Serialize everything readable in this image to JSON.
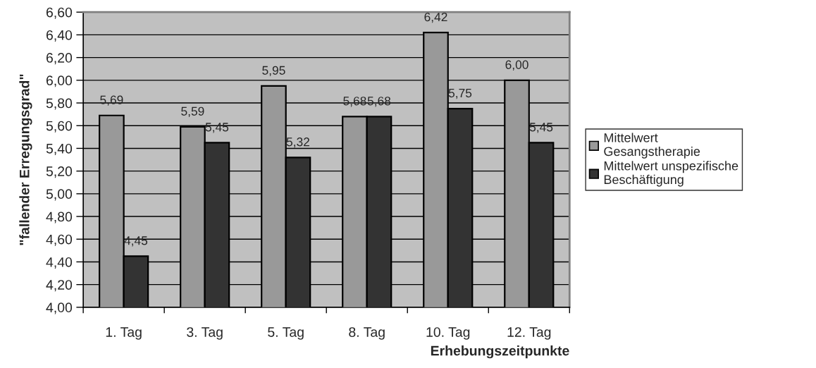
{
  "chart_data": {
    "type": "bar",
    "xlabel": "Erhebungszeitpunkte",
    "ylabel": "\"fallender Erregungsgrad\"",
    "categories": [
      "1. Tag",
      "3. Tag",
      "5. Tag",
      "8. Tag",
      "10. Tag",
      "12. Tag"
    ],
    "series": [
      {
        "name": "Mittelwert\nGesangstherapie",
        "color": "#999999",
        "values": [
          5.69,
          5.59,
          5.95,
          5.68,
          6.42,
          6.0
        ],
        "value_labels": [
          "5,69",
          "5,59",
          "5,95",
          "5,68",
          "6,42",
          "6,00"
        ]
      },
      {
        "name": "Mittelwert unspezifische\nBeschäftigung",
        "color": "#333333",
        "values": [
          4.45,
          5.45,
          5.32,
          5.68,
          5.75,
          5.45
        ],
        "value_labels": [
          "4,45",
          "5,45",
          "5,32",
          "5,68",
          "5,75",
          "5,45"
        ]
      }
    ],
    "ylim": [
      4.0,
      6.6
    ],
    "yticks": [
      {
        "value": 4.0,
        "label": "4,00"
      },
      {
        "value": 4.2,
        "label": "4,20"
      },
      {
        "value": 4.4,
        "label": "4,40"
      },
      {
        "value": 4.6,
        "label": "4,60"
      },
      {
        "value": 4.8,
        "label": "4,80"
      },
      {
        "value": 5.0,
        "label": "5,00"
      },
      {
        "value": 5.2,
        "label": "5,20"
      },
      {
        "value": 5.4,
        "label": "5,40"
      },
      {
        "value": 5.6,
        "label": "5,60"
      },
      {
        "value": 5.8,
        "label": "5,80"
      },
      {
        "value": 6.0,
        "label": "6,00"
      },
      {
        "value": 6.2,
        "label": "6,20"
      },
      {
        "value": 6.4,
        "label": "6,40"
      },
      {
        "value": 6.6,
        "label": "6,60"
      }
    ],
    "grid": "y",
    "legend": "right"
  }
}
